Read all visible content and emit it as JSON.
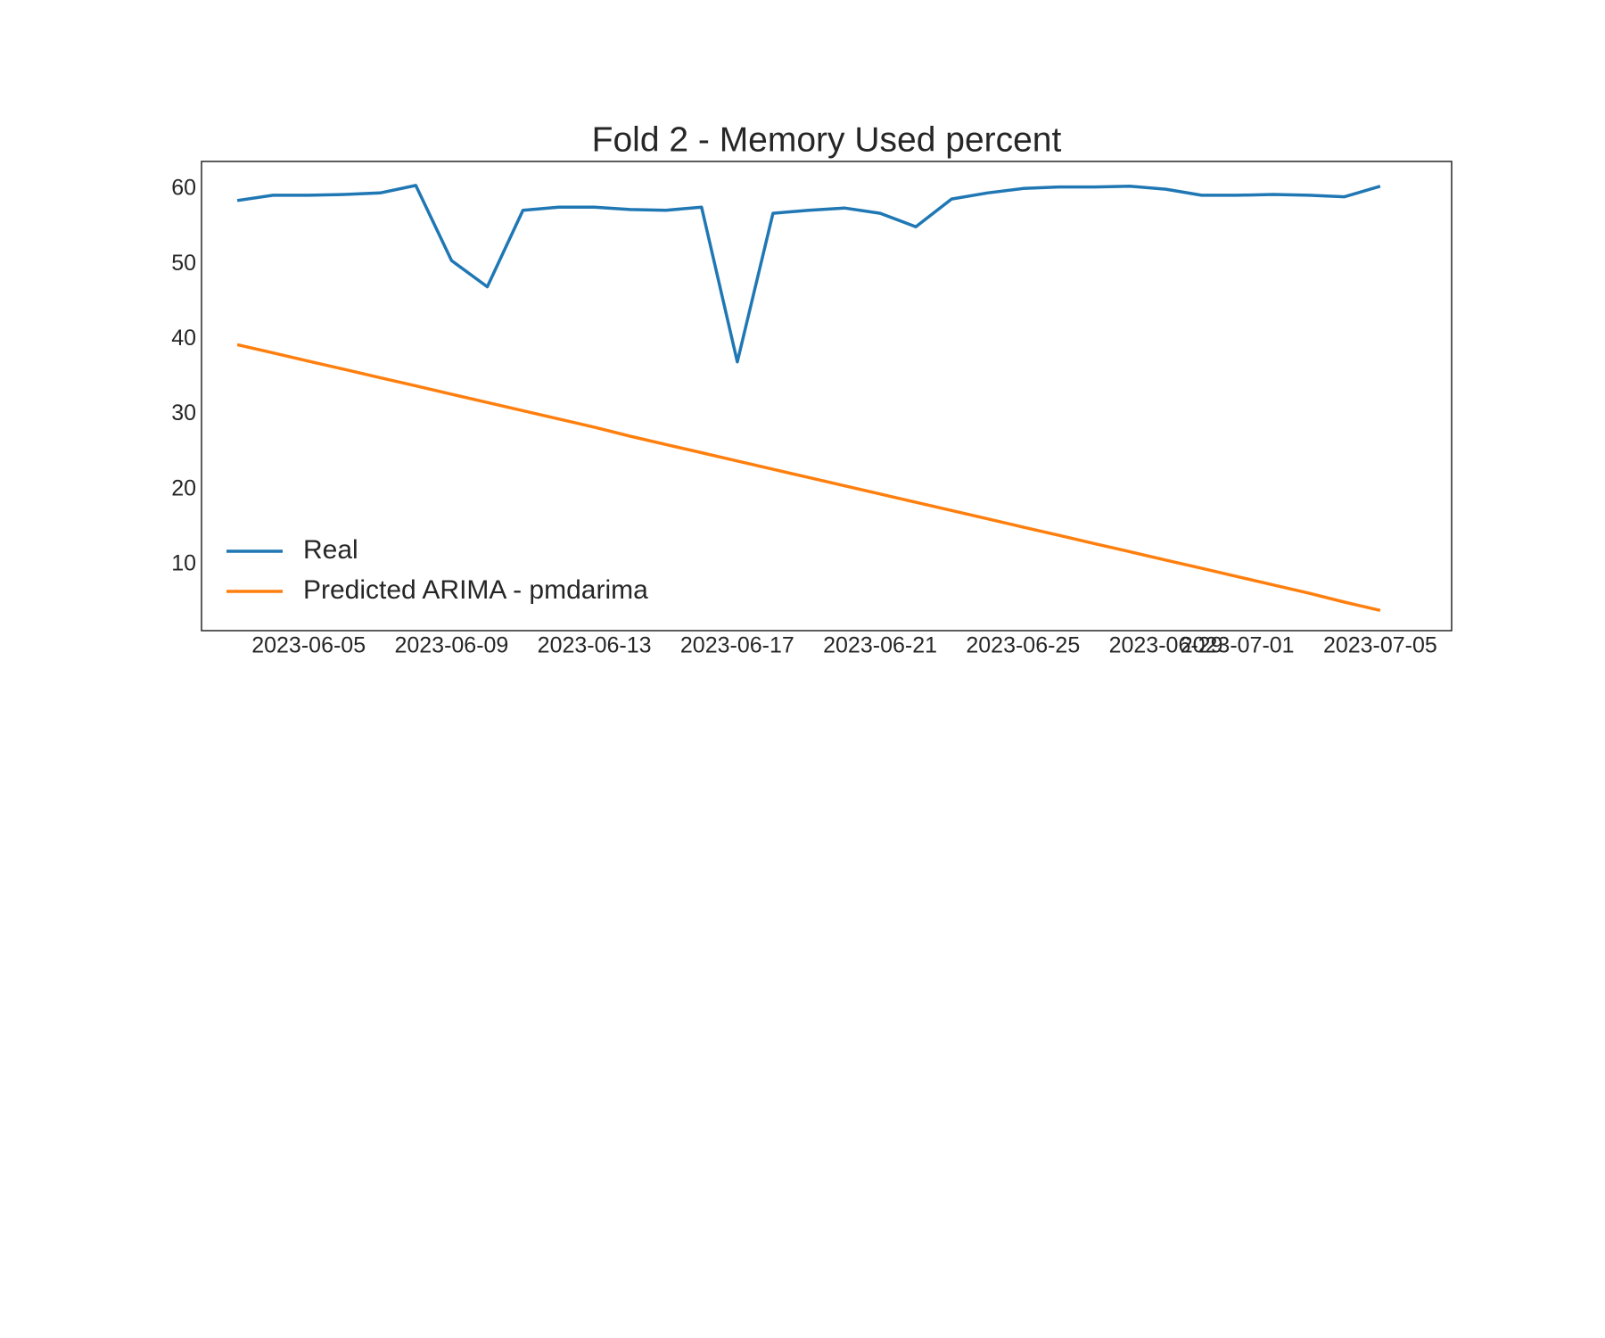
{
  "chart_data": {
    "type": "line",
    "title": "Fold 2 - Memory Used percent",
    "x": [
      "2023-06-03",
      "2023-06-04",
      "2023-06-05",
      "2023-06-06",
      "2023-06-07",
      "2023-06-08",
      "2023-06-09",
      "2023-06-10",
      "2023-06-11",
      "2023-06-12",
      "2023-06-13",
      "2023-06-14",
      "2023-06-15",
      "2023-06-16",
      "2023-06-17",
      "2023-06-18",
      "2023-06-19",
      "2023-06-20",
      "2023-06-21",
      "2023-06-22",
      "2023-06-23",
      "2023-06-24",
      "2023-06-25",
      "2023-06-26",
      "2023-06-27",
      "2023-06-28",
      "2023-06-29",
      "2023-06-30",
      "2023-07-01",
      "2023-07-02",
      "2023-07-03",
      "2023-07-04",
      "2023-07-05"
    ],
    "series": [
      {
        "name": "Real",
        "color": "#1f77b4",
        "values": [
          58.5,
          59.2,
          59.2,
          59.3,
          59.5,
          60.5,
          50.5,
          47,
          57.2,
          57.6,
          57.6,
          57.3,
          57.2,
          57.6,
          37,
          56.8,
          57.2,
          57.5,
          56.8,
          55,
          58.7,
          59.5,
          60.1,
          60.3,
          60.3,
          60.4,
          60.0,
          59.2,
          59.2,
          59.3,
          59.2,
          59.0,
          60.4
        ]
      },
      {
        "name": "Predicted ARIMA - pmdarima",
        "color": "#ff7f0e",
        "values": [
          39.3,
          38.2,
          37.1,
          36.0,
          34.9,
          33.8,
          32.7,
          31.6,
          30.5,
          29.4,
          28.3,
          27.1,
          26.0,
          24.9,
          23.8,
          22.7,
          21.6,
          20.5,
          19.4,
          18.3,
          17.2,
          16.1,
          15.0,
          13.9,
          12.8,
          11.7,
          10.6,
          9.5,
          8.4,
          7.3,
          6.2,
          5.0,
          3.9
        ]
      }
    ],
    "xlim": [
      "2023-06-02",
      "2023-07-07"
    ],
    "xticks": [
      "2023-06-05",
      "2023-06-09",
      "2023-06-13",
      "2023-06-17",
      "2023-06-21",
      "2023-06-25",
      "2023-06-29",
      "2023-07-01",
      "2023-07-05"
    ],
    "ylim": [
      1.2,
      63.7
    ],
    "yticks": [
      10,
      20,
      30,
      40,
      50,
      60
    ],
    "grid": false,
    "legend": "lower left"
  }
}
